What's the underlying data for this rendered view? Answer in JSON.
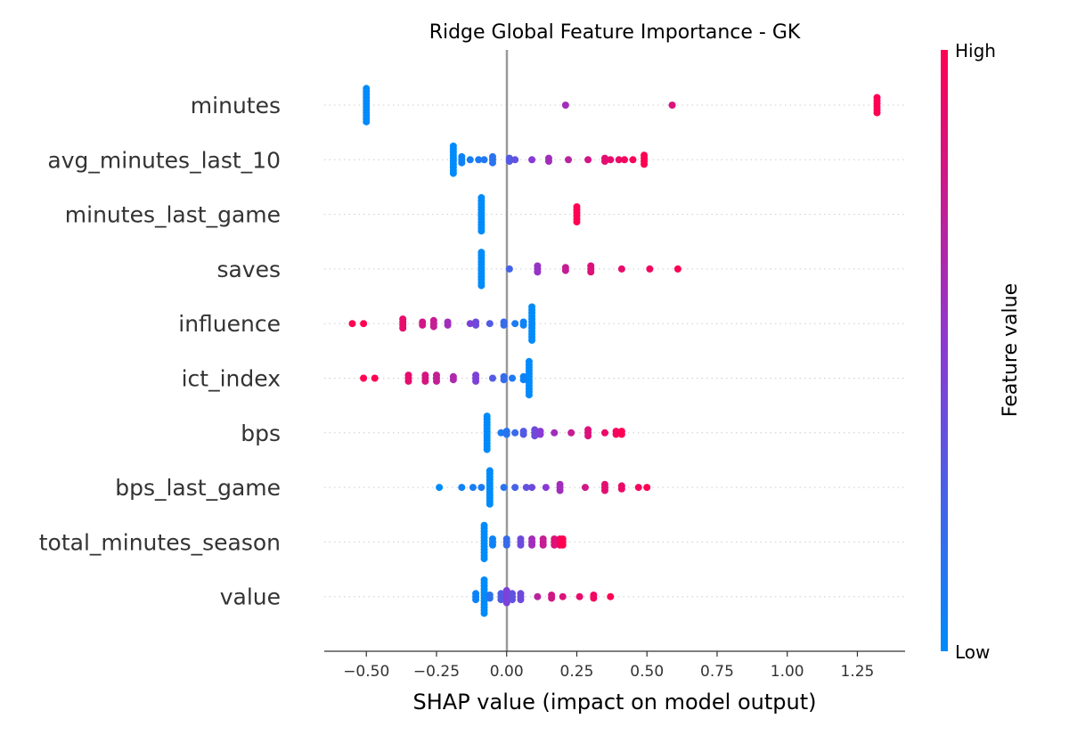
{
  "chart_data": {
    "type": "scatter",
    "title": "Ridge Global Feature Importance - GK",
    "xlabel": "SHAP value (impact on model output)",
    "xlim": [
      -0.65,
      1.42
    ],
    "xticks": [
      "−0.50",
      "−0.25",
      "0.00",
      "0.25",
      "0.50",
      "0.75",
      "1.00",
      "1.25"
    ],
    "xtick_values": [
      -0.5,
      -0.25,
      0.0,
      0.25,
      0.5,
      0.75,
      1.0,
      1.25
    ],
    "colorbar": {
      "title": "Feature value",
      "high_label": "High",
      "low_label": "Low",
      "low_color": "#008bfb",
      "high_color": "#ff0052"
    },
    "features": [
      {
        "name": "minutes",
        "points": [
          {
            "x": -0.5,
            "c": 0.0,
            "n": 12
          },
          {
            "x": 0.21,
            "c": 0.6
          },
          {
            "x": 0.59,
            "c": 0.85
          },
          {
            "x": 1.32,
            "c": 1.0,
            "n": 6
          }
        ]
      },
      {
        "name": "avg_minutes_last_10",
        "points": [
          {
            "x": -0.19,
            "c": 0.0,
            "n": 10
          },
          {
            "x": -0.16,
            "c": 0.05,
            "n": 3
          },
          {
            "x": -0.13,
            "c": 0.08
          },
          {
            "x": -0.1,
            "c": 0.1
          },
          {
            "x": -0.08,
            "c": 0.12
          },
          {
            "x": -0.05,
            "c": 0.15,
            "n": 3
          },
          {
            "x": 0.01,
            "c": 0.3,
            "n": 2
          },
          {
            "x": 0.03,
            "c": 0.35
          },
          {
            "x": 0.09,
            "c": 0.5
          },
          {
            "x": 0.15,
            "c": 0.6,
            "n": 2
          },
          {
            "x": 0.22,
            "c": 0.7
          },
          {
            "x": 0.29,
            "c": 0.8
          },
          {
            "x": 0.35,
            "c": 0.88,
            "n": 2
          },
          {
            "x": 0.37,
            "c": 0.9
          },
          {
            "x": 0.4,
            "c": 0.92
          },
          {
            "x": 0.42,
            "c": 0.95
          },
          {
            "x": 0.45,
            "c": 0.97
          },
          {
            "x": 0.49,
            "c": 1.0,
            "n": 4
          }
        ]
      },
      {
        "name": "minutes_last_game",
        "points": [
          {
            "x": -0.09,
            "c": 0.0,
            "n": 12
          },
          {
            "x": 0.25,
            "c": 1.0,
            "n": 6
          }
        ]
      },
      {
        "name": "saves",
        "points": [
          {
            "x": -0.09,
            "c": 0.0,
            "n": 12
          },
          {
            "x": 0.01,
            "c": 0.25
          },
          {
            "x": 0.11,
            "c": 0.55,
            "n": 3
          },
          {
            "x": 0.21,
            "c": 0.75,
            "n": 2
          },
          {
            "x": 0.3,
            "c": 0.85,
            "n": 3
          },
          {
            "x": 0.41,
            "c": 0.9
          },
          {
            "x": 0.51,
            "c": 0.95
          },
          {
            "x": 0.61,
            "c": 1.0
          }
        ]
      },
      {
        "name": "influence",
        "points": [
          {
            "x": 0.09,
            "c": 0.0,
            "n": 12
          },
          {
            "x": 0.06,
            "c": 0.05,
            "n": 2
          },
          {
            "x": 0.03,
            "c": 0.1
          },
          {
            "x": -0.01,
            "c": 0.2,
            "n": 2
          },
          {
            "x": -0.06,
            "c": 0.3
          },
          {
            "x": -0.11,
            "c": 0.4,
            "n": 2
          },
          {
            "x": -0.13,
            "c": 0.45
          },
          {
            "x": -0.21,
            "c": 0.6,
            "n": 2
          },
          {
            "x": -0.26,
            "c": 0.75,
            "n": 3
          },
          {
            "x": -0.3,
            "c": 0.8,
            "n": 2
          },
          {
            "x": -0.37,
            "c": 0.9,
            "n": 4
          },
          {
            "x": -0.51,
            "c": 1.0
          },
          {
            "x": -0.55,
            "c": 1.0
          }
        ]
      },
      {
        "name": "ict_index",
        "points": [
          {
            "x": 0.08,
            "c": 0.0,
            "n": 12
          },
          {
            "x": 0.06,
            "c": 0.05,
            "n": 2
          },
          {
            "x": 0.02,
            "c": 0.1
          },
          {
            "x": -0.01,
            "c": 0.2,
            "n": 2
          },
          {
            "x": -0.05,
            "c": 0.3
          },
          {
            "x": -0.11,
            "c": 0.45,
            "n": 3
          },
          {
            "x": -0.19,
            "c": 0.65,
            "n": 2
          },
          {
            "x": -0.25,
            "c": 0.75,
            "n": 3
          },
          {
            "x": -0.29,
            "c": 0.82,
            "n": 3
          },
          {
            "x": -0.35,
            "c": 0.9,
            "n": 3
          },
          {
            "x": -0.47,
            "c": 1.0
          },
          {
            "x": -0.51,
            "c": 1.0
          }
        ]
      },
      {
        "name": "bps",
        "points": [
          {
            "x": -0.07,
            "c": 0.0,
            "n": 12
          },
          {
            "x": -0.02,
            "c": 0.1
          },
          {
            "x": 0.0,
            "c": 0.15,
            "n": 2
          },
          {
            "x": 0.03,
            "c": 0.2
          },
          {
            "x": 0.06,
            "c": 0.3,
            "n": 2
          },
          {
            "x": 0.1,
            "c": 0.4,
            "n": 3
          },
          {
            "x": 0.12,
            "c": 0.5,
            "n": 2
          },
          {
            "x": 0.17,
            "c": 0.6
          },
          {
            "x": 0.23,
            "c": 0.75
          },
          {
            "x": 0.29,
            "c": 0.85,
            "n": 3
          },
          {
            "x": 0.35,
            "c": 0.92
          },
          {
            "x": 0.39,
            "c": 0.95,
            "n": 2
          },
          {
            "x": 0.41,
            "c": 1.0,
            "n": 2
          }
        ]
      },
      {
        "name": "bps_last_game",
        "points": [
          {
            "x": -0.06,
            "c": 0.0,
            "n": 12
          },
          {
            "x": -0.24,
            "c": 0.0
          },
          {
            "x": -0.16,
            "c": 0.05
          },
          {
            "x": -0.12,
            "c": 0.08
          },
          {
            "x": -0.09,
            "c": 0.1
          },
          {
            "x": -0.01,
            "c": 0.15
          },
          {
            "x": 0.03,
            "c": 0.25
          },
          {
            "x": 0.07,
            "c": 0.35
          },
          {
            "x": 0.09,
            "c": 0.4
          },
          {
            "x": 0.14,
            "c": 0.5
          },
          {
            "x": 0.19,
            "c": 0.6,
            "n": 3
          },
          {
            "x": 0.28,
            "c": 0.8
          },
          {
            "x": 0.35,
            "c": 0.88,
            "n": 3
          },
          {
            "x": 0.41,
            "c": 0.92,
            "n": 2
          },
          {
            "x": 0.47,
            "c": 0.96
          },
          {
            "x": 0.5,
            "c": 1.0
          }
        ]
      },
      {
        "name": "total_minutes_season",
        "points": [
          {
            "x": -0.08,
            "c": 0.0,
            "n": 12
          },
          {
            "x": -0.05,
            "c": 0.05,
            "n": 3
          },
          {
            "x": 0.0,
            "c": 0.2,
            "n": 3
          },
          {
            "x": 0.05,
            "c": 0.4,
            "n": 3
          },
          {
            "x": 0.09,
            "c": 0.6,
            "n": 3
          },
          {
            "x": 0.13,
            "c": 0.75,
            "n": 3
          },
          {
            "x": 0.17,
            "c": 0.85,
            "n": 3
          },
          {
            "x": 0.19,
            "c": 0.95,
            "n": 3
          },
          {
            "x": 0.2,
            "c": 1.0,
            "n": 3
          }
        ]
      },
      {
        "name": "value",
        "points": [
          {
            "x": -0.08,
            "c": 0.0,
            "n": 12
          },
          {
            "x": -0.11,
            "c": 0.05,
            "n": 3
          },
          {
            "x": -0.06,
            "c": 0.15,
            "n": 2
          },
          {
            "x": -0.02,
            "c": 0.3,
            "n": 3
          },
          {
            "x": 0.0,
            "c": 0.45,
            "n": 5
          },
          {
            "x": 0.02,
            "c": 0.35,
            "n": 3
          },
          {
            "x": 0.05,
            "c": 0.4,
            "n": 3
          },
          {
            "x": 0.11,
            "c": 0.7
          },
          {
            "x": 0.16,
            "c": 0.8,
            "n": 2
          },
          {
            "x": 0.2,
            "c": 0.85
          },
          {
            "x": 0.26,
            "c": 0.9
          },
          {
            "x": 0.31,
            "c": 0.95,
            "n": 2
          },
          {
            "x": 0.37,
            "c": 1.0
          }
        ]
      }
    ]
  }
}
